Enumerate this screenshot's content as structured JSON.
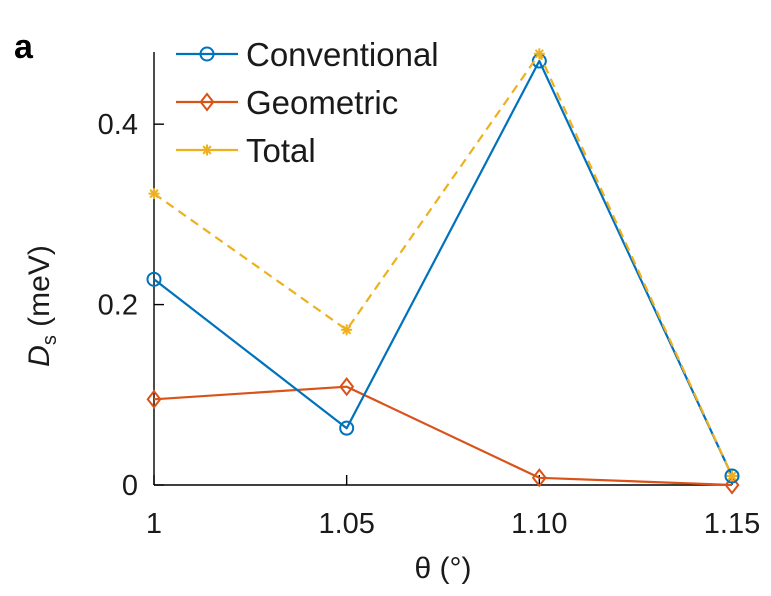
{
  "panel_label": "a",
  "chart_data": {
    "type": "line",
    "title": "",
    "xlabel": "θ (°)",
    "ylabel": {
      "symbol": "D",
      "subscript": "s",
      "unit": " (meV)"
    },
    "x": [
      1,
      1.05,
      1.1,
      1.15
    ],
    "xticks": [
      "1",
      "1.05",
      "1.10",
      "1.15"
    ],
    "yticks": [
      "0",
      "0.2",
      "0.4"
    ],
    "ytick_values": [
      0,
      0.2,
      0.4
    ],
    "xlim": [
      1,
      1.15
    ],
    "ylim": [
      0,
      0.48
    ],
    "grid": false,
    "legend_position": "top-left",
    "series": [
      {
        "name": "Conventional",
        "values": [
          0.228,
          0.063,
          0.47,
          0.01
        ],
        "color": "#0072BD",
        "marker": "circle",
        "line_style": "solid"
      },
      {
        "name": "Geometric",
        "values": [
          0.095,
          0.109,
          0.008,
          0.0
        ],
        "color": "#D95319",
        "marker": "diamond",
        "line_style": "solid"
      },
      {
        "name": "Total",
        "values": [
          0.323,
          0.172,
          0.478,
          0.01
        ],
        "color": "#EDB120",
        "marker": "asterisk",
        "line_style": "dashed"
      }
    ]
  }
}
